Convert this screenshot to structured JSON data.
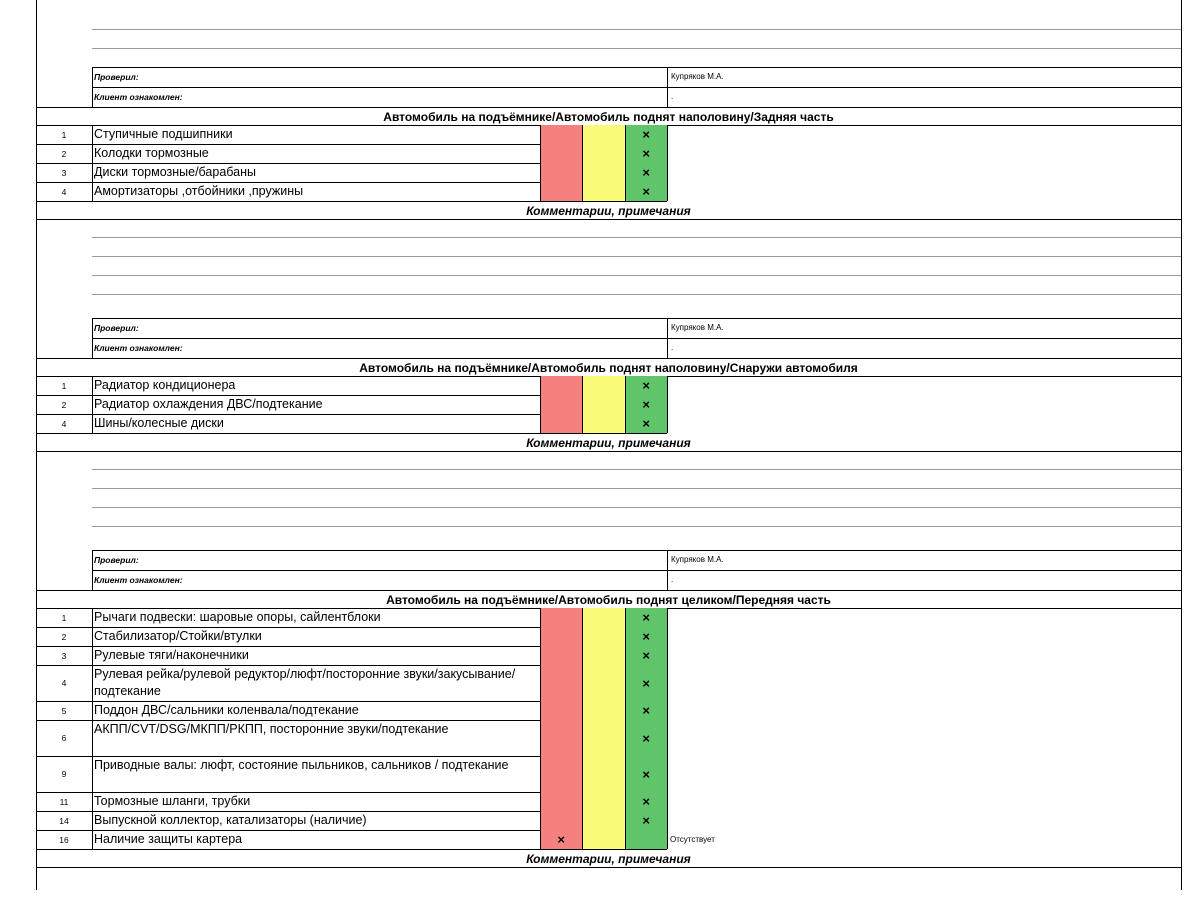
{
  "labels": {
    "checked_by": "Проверил:",
    "client_informed": "Клиент ознакомлен:",
    "checker_name": "Купряков М.А.",
    "client_value": ".",
    "comments": "Комментарии, примечания"
  },
  "sections": [
    {
      "title": "Автомобиль на подъёмнике/Автомобиль поднят наполовину/Задняя часть",
      "items": [
        {
          "n": "1",
          "text": "Ступичные подшипники",
          "status": "green",
          "note": ""
        },
        {
          "n": "2",
          "text": "Колодки тормозные",
          "status": "green",
          "note": ""
        },
        {
          "n": "3",
          "text": "Диски тормозные/барабаны",
          "status": "green",
          "note": ""
        },
        {
          "n": "4",
          "text": "Амортизаторы ,отбойники ,пружины",
          "status": "green",
          "note": ""
        }
      ]
    },
    {
      "title": "Автомобиль на подъёмнике/Автомобиль поднят наполовину/Снаружи автомобиля",
      "items": [
        {
          "n": "1",
          "text": "Радиатор кондиционера",
          "status": "green",
          "note": ""
        },
        {
          "n": "2",
          "text": "Радиатор охлаждения ДВС/подтекание",
          "status": "green",
          "note": ""
        },
        {
          "n": "4",
          "text": "Шины/колесные диски",
          "status": "green",
          "note": ""
        }
      ]
    },
    {
      "title": "Автомобиль на подъёмнике/Автомобиль поднят целиком/Передняя часть",
      "items": [
        {
          "n": "1",
          "text": "Рычаги подвески: шаровые опоры, сайлентблоки",
          "status": "green",
          "note": ""
        },
        {
          "n": "2",
          "text": "Стабилизатор/Стойки/втулки",
          "status": "green",
          "note": ""
        },
        {
          "n": "3",
          "text": "Рулевые тяги/наконечники",
          "status": "green",
          "note": ""
        },
        {
          "n": "4",
          "text": "Рулевая рейка/рулевой редуктор/люфт/посторонние звуки/закусывание/подтекание",
          "status": "green",
          "note": ""
        },
        {
          "n": "5",
          "text": "Поддон ДВС/сальники коленвала/подтекание",
          "status": "green",
          "note": ""
        },
        {
          "n": "6",
          "text": "АКПП/CVT/DSG/МКПП/РКПП, посторонние звуки/подтекание",
          "status": "green",
          "note": ""
        },
        {
          "n": "9",
          "text": "Приводные валы: люфт, состояние пыльников, сальников / подтекание",
          "status": "green",
          "note": ""
        },
        {
          "n": "11",
          "text": "Тормозные шланги, трубки",
          "status": "green",
          "note": ""
        },
        {
          "n": "14",
          "text": "Выпускной коллектор, катализаторы (наличие)",
          "status": "green",
          "note": ""
        },
        {
          "n": "16",
          "text": "Наличие защиты картера",
          "status": "red",
          "note": "Отсутствует"
        }
      ]
    }
  ],
  "mark_symbol": "×",
  "colors": {
    "red": "#f48080",
    "yellow": "#fbfb7a",
    "green": "#5fc46a"
  }
}
